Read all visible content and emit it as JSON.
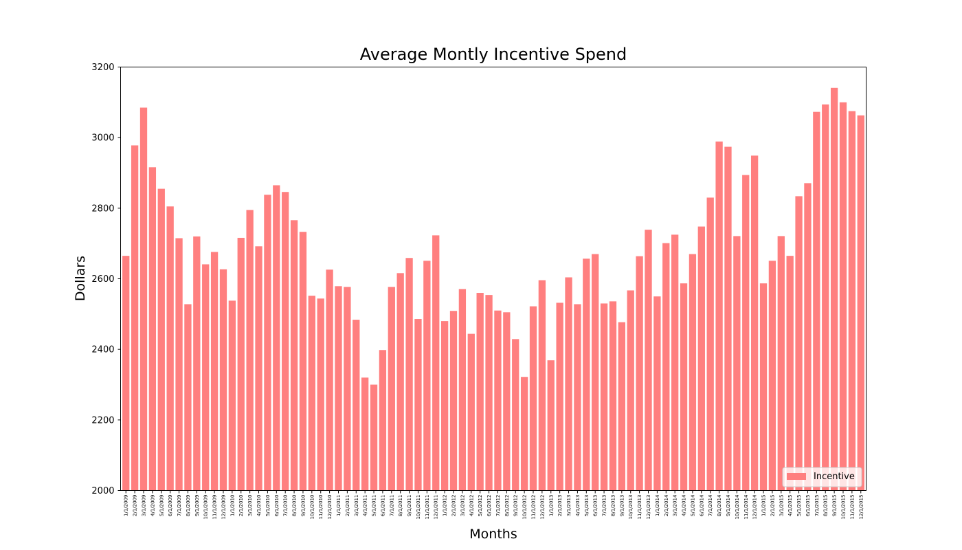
{
  "chart_data": {
    "type": "bar",
    "title": "Average Montly Incentive Spend",
    "xlabel": "Months",
    "ylabel": "Dollars",
    "ylim": [
      2000,
      3200
    ],
    "yticks": [
      2000,
      2200,
      2400,
      2600,
      2800,
      3000,
      3200
    ],
    "grid": false,
    "legend_position": "lower-right",
    "bar_color": "#ff7f7f",
    "categories": [
      "1/1/2009",
      "2/1/2009",
      "3/1/2009",
      "4/1/2009",
      "5/1/2009",
      "6/1/2009",
      "7/1/2009",
      "8/1/2009",
      "9/1/2009",
      "10/1/2009",
      "11/1/2009",
      "12/1/2009",
      "1/1/2010",
      "2/1/2010",
      "3/1/2010",
      "4/1/2010",
      "5/1/2010",
      "6/1/2010",
      "7/1/2010",
      "8/1/2010",
      "9/1/2010",
      "10/1/2010",
      "11/1/2010",
      "12/1/2010",
      "1/1/2011",
      "2/1/2011",
      "3/1/2011",
      "4/1/2011",
      "5/1/2011",
      "6/1/2011",
      "7/1/2011",
      "8/1/2011",
      "9/1/2011",
      "10/1/2011",
      "11/1/2011",
      "12/1/2011",
      "1/1/2012",
      "2/1/2012",
      "3/1/2012",
      "4/1/2012",
      "5/1/2012",
      "6/1/2012",
      "7/1/2012",
      "8/1/2012",
      "9/1/2012",
      "10/1/2012",
      "11/1/2012",
      "12/1/2012",
      "1/1/2013",
      "2/1/2013",
      "3/1/2013",
      "4/1/2013",
      "5/1/2013",
      "6/1/2013",
      "7/1/2013",
      "8/1/2013",
      "9/1/2013",
      "10/1/2013",
      "11/1/2013",
      "12/1/2013",
      "1/1/2014",
      "2/1/2014",
      "3/1/2014",
      "4/1/2014",
      "5/1/2014",
      "6/1/2014",
      "7/1/2014",
      "8/1/2014",
      "9/1/2014",
      "10/1/2014",
      "11/1/2014",
      "12/1/2014",
      "1/1/2015",
      "2/1/2015",
      "3/1/2015",
      "4/1/2015",
      "5/1/2015",
      "6/1/2015",
      "7/1/2015",
      "8/1/2015",
      "9/1/2015",
      "10/1/2015",
      "11/1/2015",
      "12/1/2015"
    ],
    "series": [
      {
        "name": "Incentive",
        "values": [
          2665,
          2978,
          3085,
          2916,
          2855,
          2805,
          2715,
          2528,
          2720,
          2641,
          2676,
          2627,
          2538,
          2716,
          2795,
          2692,
          2838,
          2865,
          2846,
          2766,
          2733,
          2552,
          2544,
          2626,
          2579,
          2577,
          2484,
          2320,
          2300,
          2398,
          2577,
          2616,
          2659,
          2486,
          2651,
          2723,
          2480,
          2509,
          2571,
          2444,
          2560,
          2554,
          2510,
          2505,
          2429,
          2322,
          2522,
          2596,
          2369,
          2532,
          2604,
          2528,
          2657,
          2670,
          2530,
          2536,
          2477,
          2567,
          2664,
          2739,
          2550,
          2701,
          2725,
          2587,
          2670,
          2748,
          2830,
          2989,
          2974,
          2721,
          2894,
          2949,
          2587,
          2651,
          2721,
          2665,
          2834,
          2871,
          3073,
          3094,
          3141,
          3100,
          3075,
          3063
        ]
      }
    ]
  }
}
